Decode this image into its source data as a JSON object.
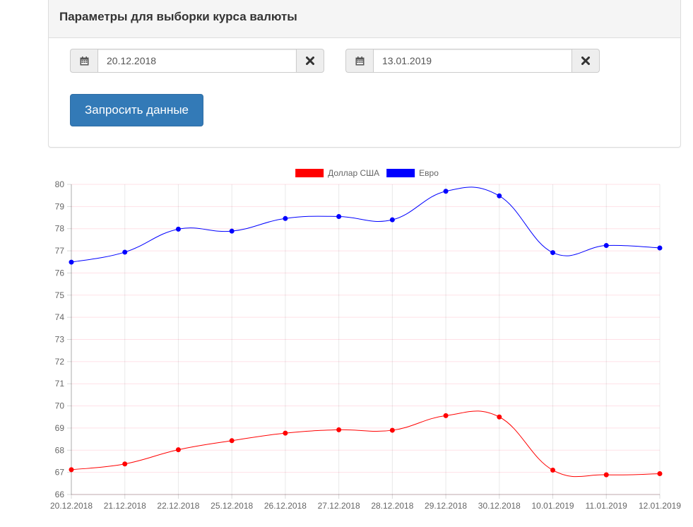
{
  "panel": {
    "title": "Параметры для выборки курса валюты",
    "date_from": {
      "value": "20.12.2018",
      "calendar_icon": "calendar-icon",
      "clear_icon": "close-icon"
    },
    "date_to": {
      "value": "13.01.2019",
      "calendar_icon": "calendar-icon",
      "clear_icon": "close-icon"
    },
    "submit_label": "Запросить данные"
  },
  "chart_data": {
    "type": "line",
    "categories": [
      "20.12.2018",
      "21.12.2018",
      "22.12.2018",
      "25.12.2018",
      "26.12.2018",
      "27.12.2018",
      "28.12.2018",
      "29.12.2018",
      "30.12.2018",
      "10.01.2019",
      "11.01.2019",
      "12.01.2019"
    ],
    "series": [
      {
        "name": "Доллар США",
        "color": "#ff0000",
        "values": [
          67.12,
          67.38,
          68.02,
          68.43,
          68.77,
          68.92,
          68.9,
          69.56,
          69.5,
          67.1,
          66.89,
          66.94
        ]
      },
      {
        "name": "Евро",
        "color": "#0000ff",
        "values": [
          76.49,
          76.94,
          77.98,
          77.89,
          78.46,
          78.55,
          78.4,
          79.69,
          79.48,
          76.92,
          77.24,
          77.13
        ]
      }
    ],
    "ylim": [
      66,
      80
    ],
    "yticks": [
      66,
      67,
      68,
      69,
      70,
      71,
      72,
      73,
      74,
      75,
      76,
      77,
      78,
      79,
      80
    ],
    "grid": true,
    "legend": "top"
  }
}
